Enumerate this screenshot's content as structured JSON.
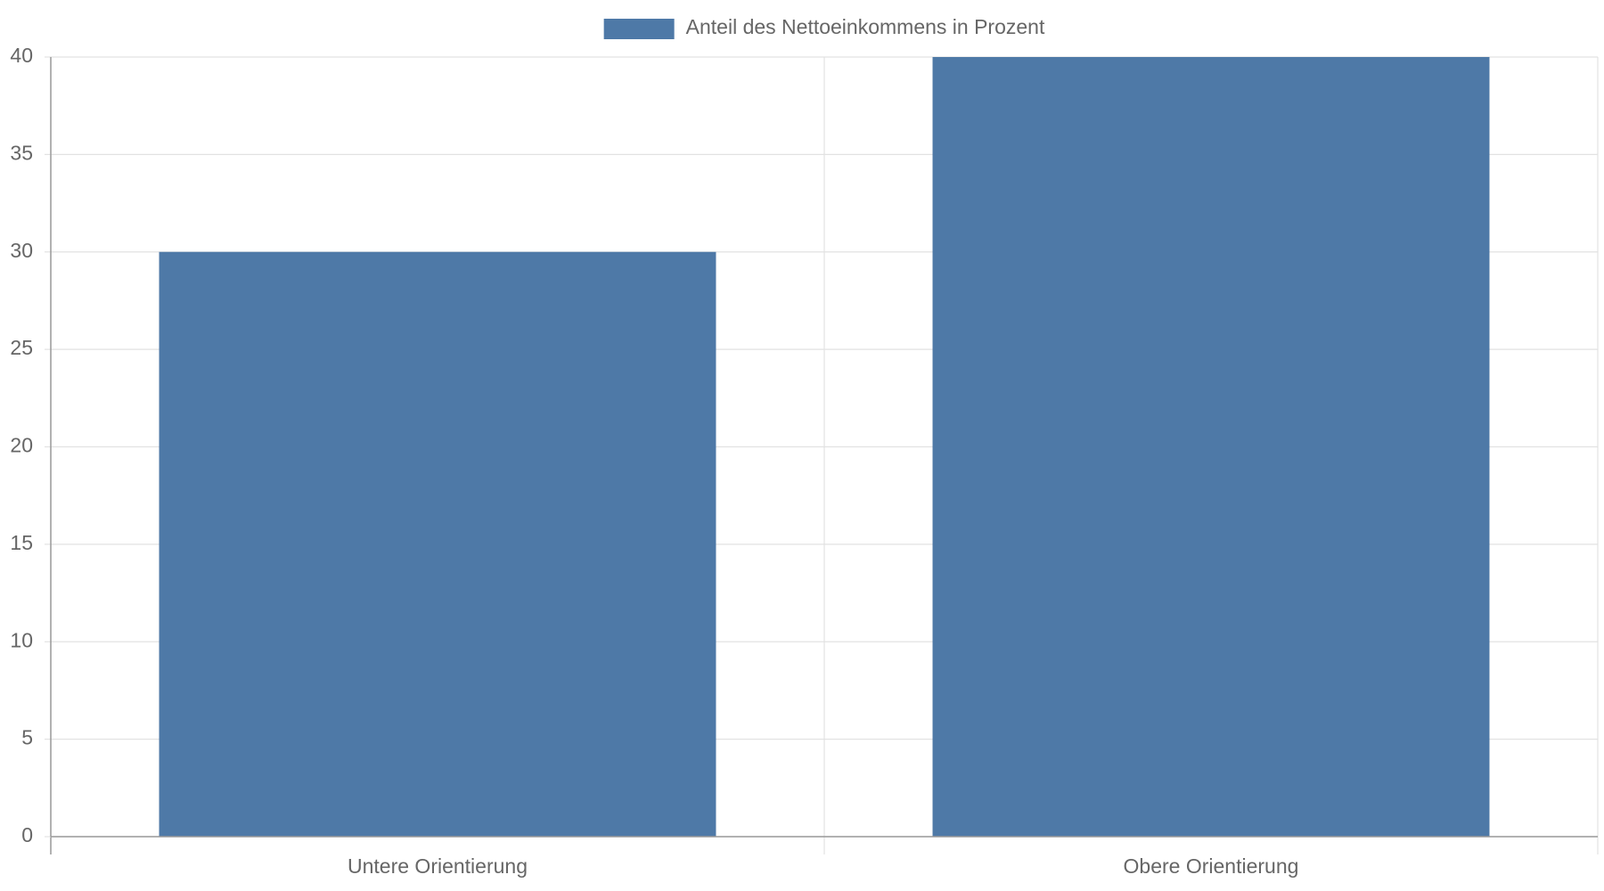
{
  "chart_data": {
    "type": "bar",
    "categories": [
      "Untere Orientierung",
      "Obere Orientierung"
    ],
    "series": [
      {
        "name": "Anteil des Nettoeinkommens in Prozent",
        "color": "#4e79a7",
        "values": [
          30,
          40
        ]
      }
    ],
    "ylim": [
      0,
      40
    ],
    "yticks": [
      0,
      5,
      10,
      15,
      20,
      25,
      30,
      35,
      40
    ],
    "grid": true,
    "legend": "top"
  }
}
